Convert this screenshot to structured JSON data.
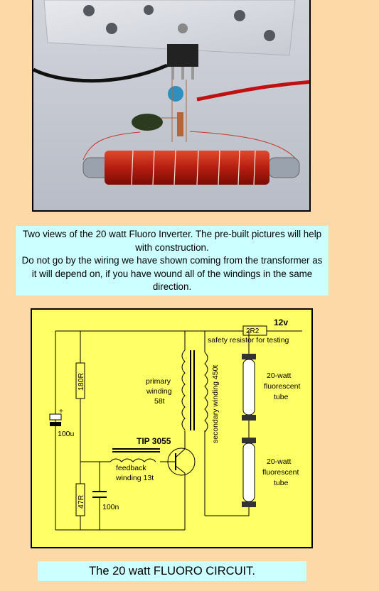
{
  "caption": {
    "line1": "Two views of the 20 watt Fluoro Inverter. The pre-built pictures will help with construction.",
    "line2": "Do not go by the wiring we have shown coming from the transformer as it will depend on, if you have wound all of  the windings in the same direction."
  },
  "circuit": {
    "supply": "12v",
    "resistor_safety": "2R2",
    "safety_note": "safety resistor for testing",
    "resistor_top": "180R",
    "resistor_bottom": "47R",
    "capacitor_electrolytic": "100u",
    "capacitor_small": "100n",
    "transistor": "TIP 3055",
    "primary_label": [
      "primary",
      "winding",
      "58t"
    ],
    "secondary_label": "secondary winding 450t",
    "feedback_label": [
      "feedback",
      "winding 13t"
    ],
    "tube1_label": [
      "20-watt",
      "fluorescent",
      "tube"
    ],
    "tube2_label": [
      "20-watt",
      "fluorescent",
      "tube"
    ]
  },
  "footer": {
    "title": "The 20 watt FLUORO CIRCUIT."
  }
}
